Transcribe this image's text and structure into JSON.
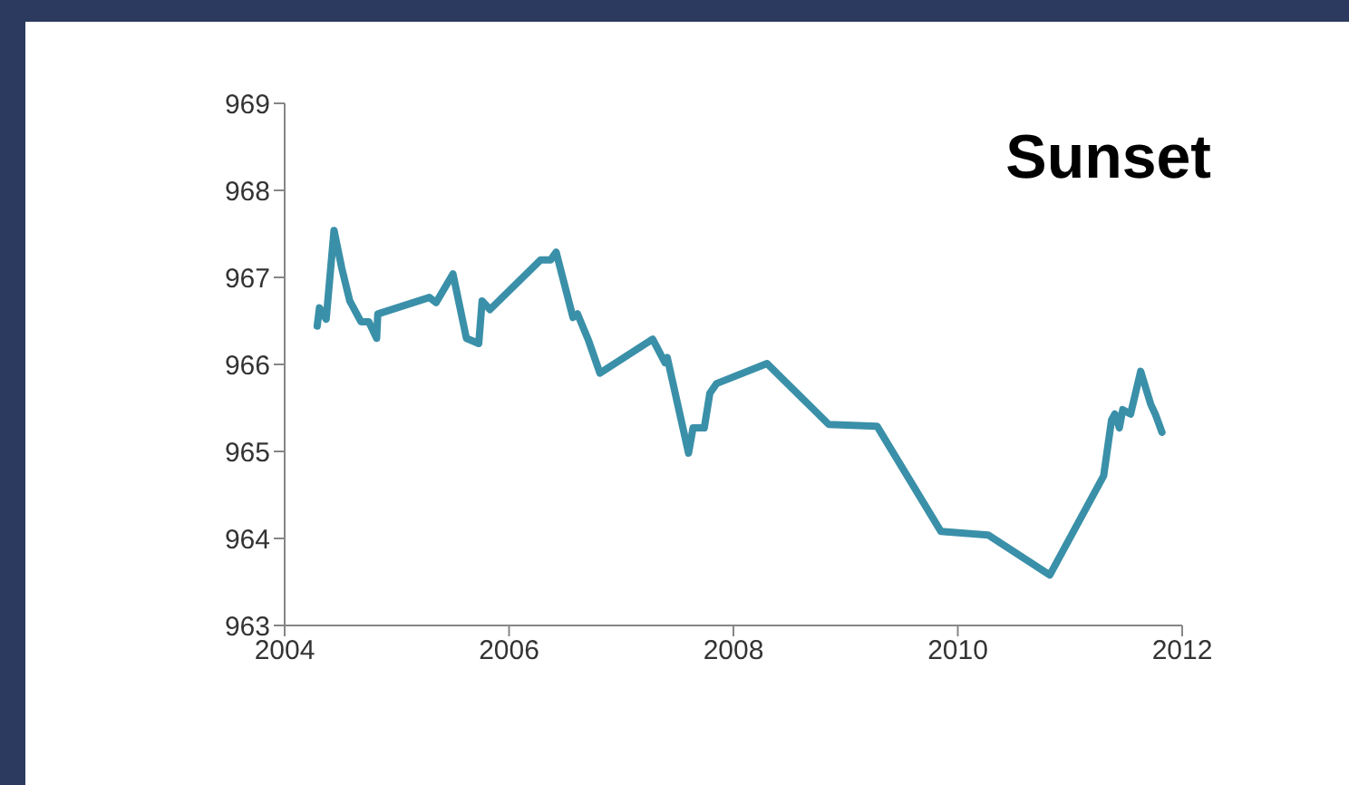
{
  "chart_data": {
    "type": "line",
    "title": "Sunset",
    "x": [
      2004.29,
      2004.31,
      2004.37,
      2004.44,
      2004.51,
      2004.58,
      2004.68,
      2004.75,
      2004.82,
      2004.83,
      2005.29,
      2005.35,
      2005.5,
      2005.62,
      2005.73,
      2005.76,
      2005.83,
      2006.28,
      2006.37,
      2006.42,
      2006.57,
      2006.61,
      2006.71,
      2006.81,
      2007.28,
      2007.39,
      2007.41,
      2007.6,
      2007.64,
      2007.74,
      2007.79,
      2007.85,
      2008.3,
      2008.85,
      2009.28,
      2009.85,
      2010.27,
      2010.82,
      2011.3,
      2011.37,
      2011.4,
      2011.44,
      2011.47,
      2011.54,
      2011.63,
      2011.72,
      2011.76,
      2011.82
    ],
    "series": [
      {
        "color": "#3a90a8",
        "values": [
          966.44,
          966.65,
          966.52,
          967.54,
          967.1,
          966.73,
          966.49,
          966.49,
          966.3,
          966.58,
          966.77,
          966.71,
          967.04,
          966.3,
          966.24,
          966.73,
          966.63,
          967.2,
          967.2,
          967.29,
          966.54,
          966.58,
          966.27,
          965.9,
          966.29,
          966.02,
          966.08,
          964.98,
          965.27,
          965.27,
          965.67,
          965.78,
          966.01,
          965.31,
          965.29,
          964.08,
          964.04,
          963.58,
          964.72,
          965.36,
          965.43,
          965.27,
          965.48,
          965.43,
          965.92,
          965.54,
          965.43,
          965.22
        ]
      }
    ],
    "xlim": [
      2004,
      2012
    ],
    "xticks": [
      2004,
      2006,
      2008,
      2010,
      2012
    ],
    "ylim": [
      963,
      969
    ],
    "yticks": [
      963,
      964,
      965,
      966,
      967,
      968,
      969
    ],
    "grid": false,
    "legend": false,
    "marker": "none",
    "line_style": "solid"
  }
}
